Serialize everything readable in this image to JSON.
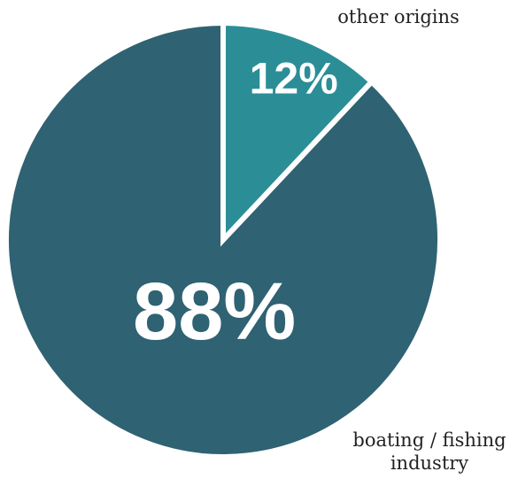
{
  "chart_data": {
    "type": "pie",
    "categories": [
      "other origins",
      "boating / fishing industry"
    ],
    "values": [
      12,
      88
    ],
    "value_labels": [
      "12%",
      "88%"
    ],
    "colors": [
      "#2b8e97",
      "#2f6272"
    ]
  }
}
